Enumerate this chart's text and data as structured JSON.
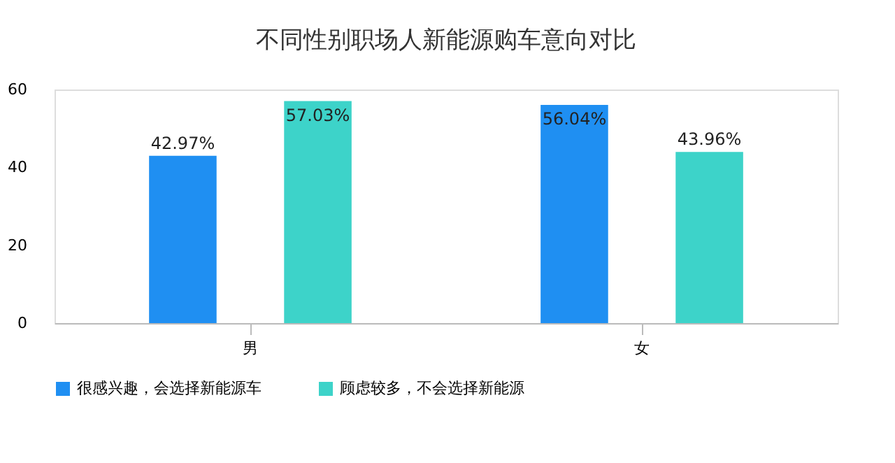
{
  "chart_data": {
    "type": "bar",
    "title": "不同性别职场人新能源购车意向对比",
    "categories": [
      "男",
      "女"
    ],
    "series": [
      {
        "name": "很感兴趣，会选择新能源车",
        "color": "#1f8ff2",
        "values": [
          42.97,
          56.04
        ],
        "value_labels": [
          "42.97%",
          "56.04%"
        ]
      },
      {
        "name": "顾虑较多，不会选择新能源",
        "color": "#3dd3c9",
        "values": [
          57.03,
          43.96
        ],
        "value_labels": [
          "57.03%",
          "43.96%"
        ]
      }
    ],
    "ylim": [
      0,
      60
    ],
    "yticks": [
      0,
      20,
      40,
      60
    ],
    "grid": false,
    "legend": "bottom"
  }
}
